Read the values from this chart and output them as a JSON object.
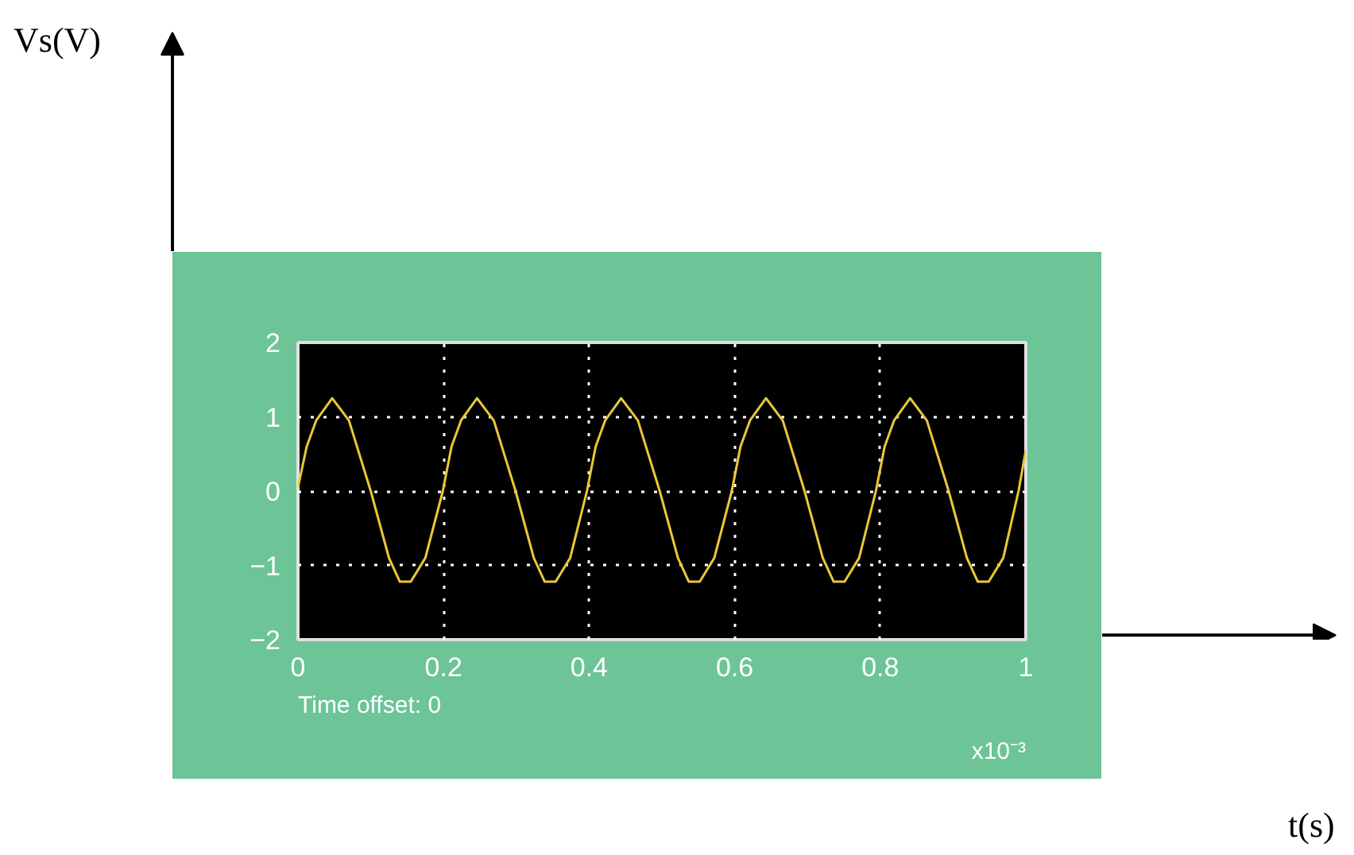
{
  "chart_data": {
    "type": "line",
    "x": [
      0,
      0.012,
      0.025,
      0.047,
      0.07,
      0.1,
      0.125,
      0.14,
      0.155,
      0.175,
      0.199,
      0.211,
      0.224,
      0.246,
      0.269,
      0.299,
      0.324,
      0.339,
      0.354,
      0.374,
      0.397,
      0.409,
      0.422,
      0.444,
      0.467,
      0.497,
      0.522,
      0.537,
      0.552,
      0.572,
      0.596,
      0.608,
      0.621,
      0.643,
      0.666,
      0.696,
      0.721,
      0.736,
      0.751,
      0.771,
      0.794,
      0.806,
      0.819,
      0.841,
      0.864,
      0.894,
      0.919,
      0.934,
      0.949,
      0.969,
      0.99,
      1.0
    ],
    "series": [
      {
        "color": "#e8c83a",
        "values": [
          0.05,
          0.6,
          0.95,
          1.25,
          0.95,
          0,
          -0.9,
          -1.22,
          -1.22,
          -0.9,
          0,
          0.6,
          0.95,
          1.25,
          0.95,
          0,
          -0.9,
          -1.22,
          -1.22,
          -0.9,
          0,
          0.6,
          0.95,
          1.25,
          0.95,
          0,
          -0.9,
          -1.22,
          -1.22,
          -0.9,
          0,
          0.6,
          0.95,
          1.25,
          0.95,
          0,
          -0.9,
          -1.22,
          -1.22,
          -0.9,
          0,
          0.6,
          0.95,
          1.25,
          0.95,
          0,
          -0.9,
          -1.22,
          -1.22,
          -0.9,
          0,
          0.55
        ]
      }
    ],
    "xlim": [
      0,
      1
    ],
    "ylim": [
      -2,
      2
    ],
    "xticks": [
      0,
      0.2,
      0.4,
      0.6,
      0.8,
      1
    ],
    "yticks": [
      -2,
      -1,
      0,
      1,
      2
    ],
    "grid": true,
    "line_style": "solid",
    "marker": "none",
    "annotations": [
      "Time offset:  0",
      "x10⁻³",
      "Vs(V)",
      "t(s)"
    ]
  }
}
